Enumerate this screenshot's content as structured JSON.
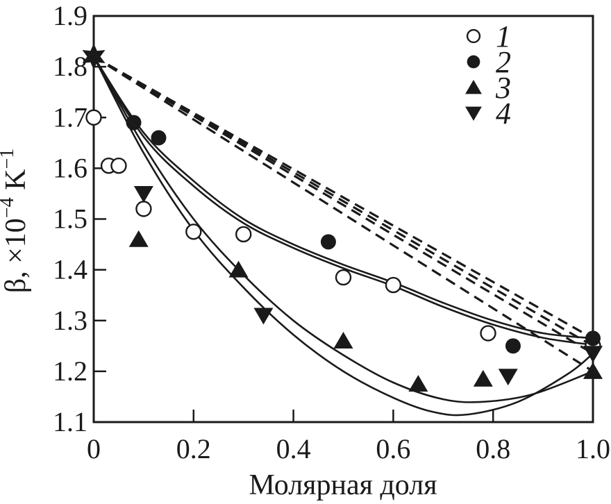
{
  "figure": {
    "background": "#ffffff",
    "foreground": "#1a1a1a"
  },
  "chart_data": {
    "type": "scatter",
    "title": "",
    "xlabel": "Молярная доля",
    "ylabel": "β, ×10⁻⁴ K⁻¹",
    "ylabel_parts": {
      "base": "β, ×10",
      "sup1": "−4",
      "mid": " K",
      "sup2": "−1"
    },
    "xlim": [
      0,
      1.0
    ],
    "ylim": [
      1.1,
      1.9
    ],
    "grid": false,
    "frame": true,
    "legend_position": "top-right",
    "xticks": {
      "values": [
        0,
        0.2,
        0.4,
        0.6,
        0.8,
        1.0
      ],
      "labels": [
        "0",
        "0.2",
        "0.4",
        "0.6",
        "0.8",
        "1.0"
      ]
    },
    "yticks": {
      "values": [
        1.1,
        1.2,
        1.3,
        1.4,
        1.5,
        1.6,
        1.7,
        1.8,
        1.9
      ],
      "labels": [
        "1.1",
        "1.2",
        "1.3",
        "1.4",
        "1.5",
        "1.6",
        "1.7",
        "1.8",
        "1.9"
      ]
    },
    "common_point": {
      "x": 0,
      "y": 1.82,
      "marker": "star-filled"
    },
    "series": [
      {
        "name": "1",
        "marker": "circle-open",
        "points": [
          [
            0,
            1.7
          ],
          [
            0.03,
            1.605
          ],
          [
            0.05,
            1.605
          ],
          [
            0.1,
            1.52
          ],
          [
            0.2,
            1.475
          ],
          [
            0.3,
            1.47
          ],
          [
            0.5,
            1.385
          ],
          [
            0.6,
            1.37
          ],
          [
            0.79,
            1.275
          ],
          [
            1.0,
            1.25
          ]
        ]
      },
      {
        "name": "2",
        "marker": "circle-filled",
        "points": [
          [
            0.08,
            1.69
          ],
          [
            0.13,
            1.66
          ],
          [
            0.47,
            1.455
          ],
          [
            0.84,
            1.25
          ],
          [
            1.0,
            1.265
          ]
        ]
      },
      {
        "name": "3",
        "marker": "triangle-up-filled",
        "points": [
          [
            0.09,
            1.46
          ],
          [
            0.29,
            1.4
          ],
          [
            0.5,
            1.26
          ],
          [
            0.65,
            1.175
          ],
          [
            0.78,
            1.185
          ],
          [
            1.0,
            1.2
          ]
        ]
      },
      {
        "name": "4",
        "marker": "triangle-down-filled",
        "points": [
          [
            0.1,
            1.55
          ],
          [
            0.34,
            1.31
          ],
          [
            0.83,
            1.19
          ],
          [
            1.0,
            1.235
          ]
        ]
      }
    ],
    "dashed_ideal_lines": [
      {
        "from": [
          0,
          1.82
        ],
        "to": [
          1.0,
          1.265
        ]
      },
      {
        "from": [
          0,
          1.82
        ],
        "to": [
          1.0,
          1.25
        ]
      },
      {
        "from": [
          0,
          1.82
        ],
        "to": [
          1.0,
          1.235
        ]
      },
      {
        "from": [
          0,
          1.82
        ],
        "to": [
          1.0,
          1.2
        ]
      }
    ],
    "fit_curves": [
      {
        "series": "2",
        "points": [
          [
            0,
            1.82
          ],
          [
            0.1,
            1.67
          ],
          [
            0.2,
            1.575
          ],
          [
            0.3,
            1.5
          ],
          [
            0.4,
            1.45
          ],
          [
            0.5,
            1.41
          ],
          [
            0.6,
            1.375
          ],
          [
            0.7,
            1.335
          ],
          [
            0.8,
            1.3
          ],
          [
            0.9,
            1.275
          ],
          [
            1.0,
            1.265
          ]
        ]
      },
      {
        "series": "1",
        "points": [
          [
            0,
            1.82
          ],
          [
            0.1,
            1.662
          ],
          [
            0.2,
            1.565
          ],
          [
            0.3,
            1.492
          ],
          [
            0.4,
            1.443
          ],
          [
            0.5,
            1.403
          ],
          [
            0.6,
            1.368
          ],
          [
            0.7,
            1.327
          ],
          [
            0.8,
            1.292
          ],
          [
            0.9,
            1.266
          ],
          [
            1.0,
            1.252
          ]
        ]
      },
      {
        "series": "4",
        "points": [
          [
            0,
            1.82
          ],
          [
            0.1,
            1.63
          ],
          [
            0.2,
            1.478
          ],
          [
            0.3,
            1.365
          ],
          [
            0.4,
            1.272
          ],
          [
            0.5,
            1.2
          ],
          [
            0.6,
            1.148
          ],
          [
            0.68,
            1.12
          ],
          [
            0.75,
            1.115
          ],
          [
            0.85,
            1.14
          ],
          [
            0.95,
            1.195
          ],
          [
            1.0,
            1.235
          ]
        ]
      },
      {
        "series": "3",
        "points": [
          [
            0,
            1.82
          ],
          [
            0.1,
            1.645
          ],
          [
            0.2,
            1.5
          ],
          [
            0.3,
            1.39
          ],
          [
            0.4,
            1.3
          ],
          [
            0.5,
            1.232
          ],
          [
            0.6,
            1.178
          ],
          [
            0.7,
            1.145
          ],
          [
            0.78,
            1.14
          ],
          [
            0.88,
            1.155
          ],
          [
            1.0,
            1.2
          ]
        ]
      }
    ],
    "legend": [
      {
        "label": "1",
        "marker": "circle-open"
      },
      {
        "label": "2",
        "marker": "circle-filled"
      },
      {
        "label": "3",
        "marker": "triangle-up-filled"
      },
      {
        "label": "4",
        "marker": "triangle-down-filled"
      }
    ]
  }
}
